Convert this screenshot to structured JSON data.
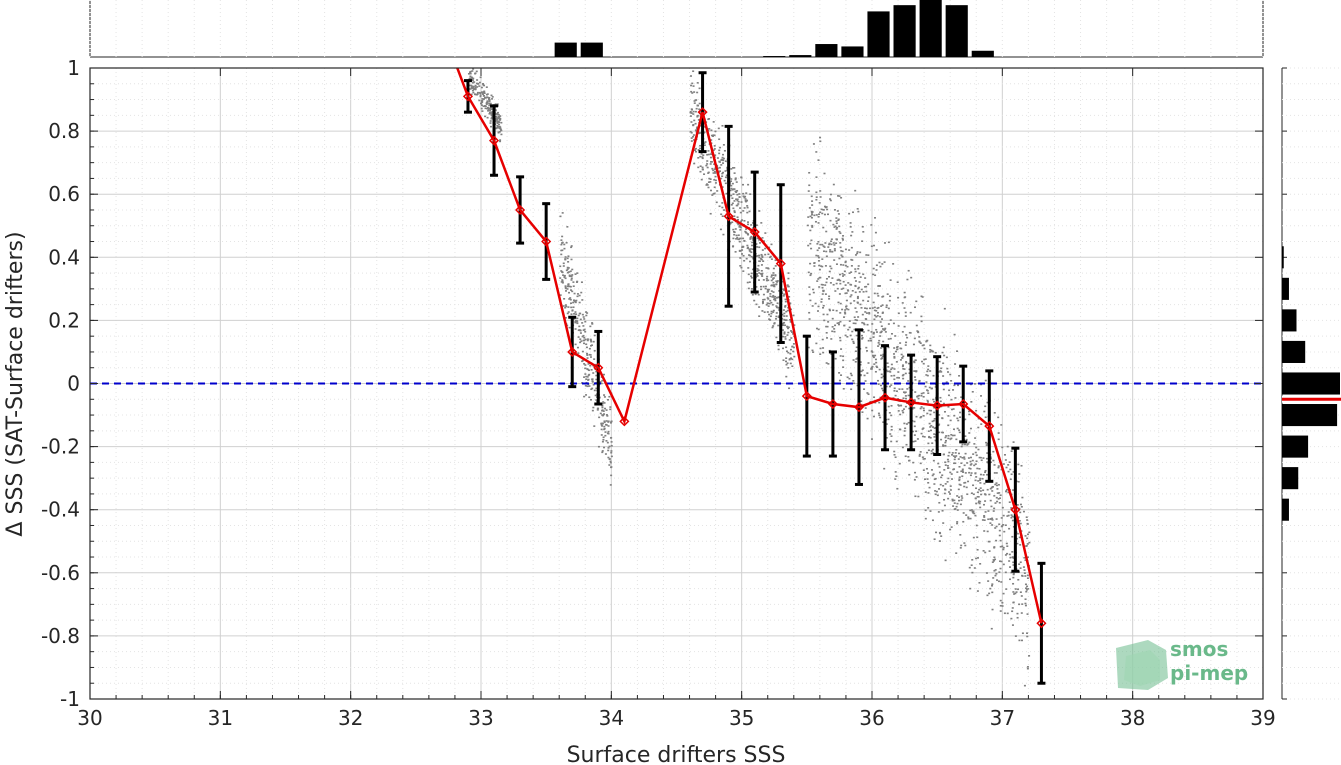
{
  "chart_data": {
    "type": "scatter",
    "xlabel": "Surface drifters SSS",
    "ylabel": "Δ SSS (SAT-Surface drifters)",
    "xlim": [
      30,
      39
    ],
    "ylim": [
      -1,
      1
    ],
    "x_ticks": [
      "30",
      "31",
      "32",
      "33",
      "34",
      "35",
      "36",
      "37",
      "38",
      "39"
    ],
    "y_ticks": [
      "-1",
      "-0.8",
      "-0.6",
      "-0.4",
      "-0.2",
      "0",
      "0.2",
      "0.4",
      "0.6",
      "0.8",
      "1"
    ],
    "grid": true,
    "zero_line": {
      "y": 0,
      "color": "#0000cc",
      "style": "dashed"
    },
    "series": [
      {
        "kind": "binned_mean_with_std",
        "color": "#e60000",
        "x": [
          32.9,
          33.1,
          33.3,
          33.5,
          33.7,
          33.9,
          34.1,
          34.7,
          34.9,
          35.1,
          35.3,
          35.5,
          35.7,
          35.9,
          36.1,
          36.3,
          36.5,
          36.7,
          36.9,
          37.1,
          37.3
        ],
        "y": [
          0.91,
          0.77,
          0.55,
          0.45,
          0.1,
          0.05,
          -0.12,
          0.86,
          0.53,
          0.48,
          0.38,
          -0.04,
          -0.065,
          -0.075,
          -0.045,
          -0.06,
          -0.07,
          -0.065,
          -0.135,
          -0.4,
          -0.76
        ],
        "std": [
          0.05,
          0.11,
          0.105,
          0.12,
          0.11,
          0.115,
          0.0,
          0.125,
          0.285,
          0.19,
          0.25,
          0.19,
          0.165,
          0.245,
          0.165,
          0.15,
          0.155,
          0.12,
          0.175,
          0.195,
          0.19
        ]
      },
      {
        "kind": "raw_points",
        "color": "#808080",
        "clusters": [
          {
            "x_range": [
              32.9,
              33.15
            ],
            "y_center": 0.9,
            "slope": -0.7,
            "spread": 0.03
          },
          {
            "x_range": [
              33.6,
              34.0
            ],
            "y_center": 0.1,
            "slope": -1.5,
            "spread": 0.1
          },
          {
            "x_range": [
              34.6,
              35.4
            ],
            "y_center": 0.5,
            "slope": -0.9,
            "spread": 0.1
          },
          {
            "x_range": [
              35.5,
              37.2
            ],
            "y_center": -0.05,
            "slope": -0.6,
            "spread": 0.22
          }
        ]
      }
    ],
    "top_histogram": {
      "x_bins": [
        33.65,
        33.85,
        35.25,
        35.45,
        35.65,
        35.85,
        36.05,
        36.25,
        36.45,
        36.65,
        36.85
      ],
      "relative_heights": [
        0.3,
        0.3,
        0.02,
        0.04,
        0.27,
        0.22,
        0.95,
        1.08,
        1.2,
        1.08,
        0.13
      ],
      "bin_width": 0.17
    },
    "right_histogram": {
      "y_bins": [
        0.4,
        0.3,
        0.2,
        0.1,
        0.0,
        -0.1,
        -0.2,
        -0.3,
        -0.4
      ],
      "relative_lengths": [
        0.03,
        0.12,
        0.25,
        0.4,
        1.0,
        0.95,
        0.45,
        0.28,
        0.12
      ],
      "bin_height": 0.07,
      "mean_line": {
        "y": -0.05,
        "color": "#e60000"
      }
    }
  },
  "logo": {
    "line1": "smos",
    "line2": "pi-mep",
    "color": "#6ab98a"
  }
}
